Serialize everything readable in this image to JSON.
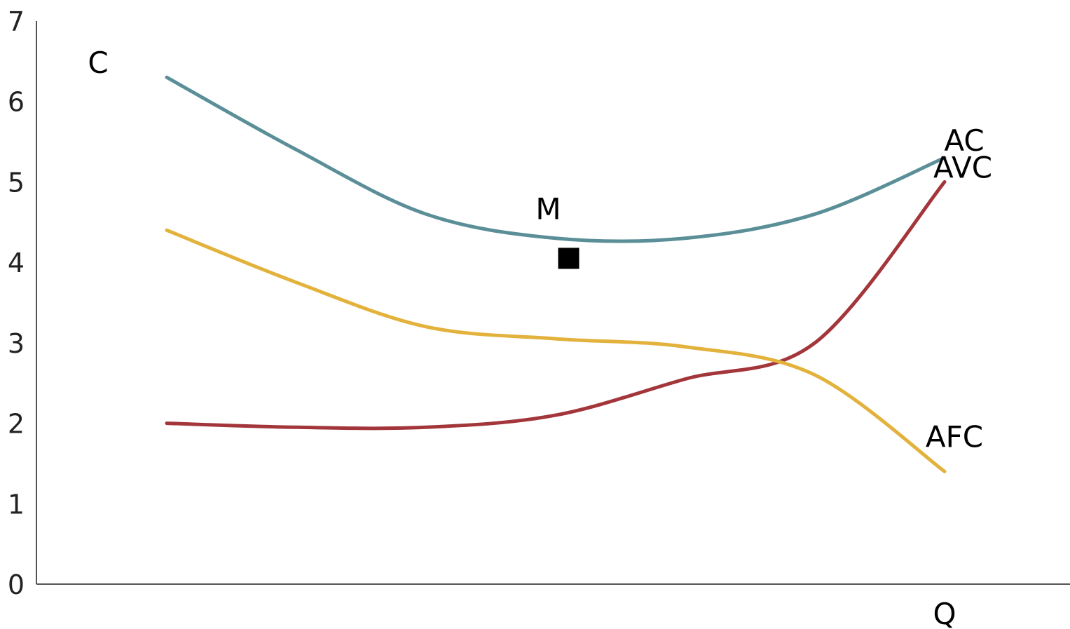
{
  "chart_data": {
    "type": "line",
    "ylabel": "C",
    "xlabel": "Q",
    "ylim": [
      0,
      7
    ],
    "yticks": [
      "0",
      "1",
      "2",
      "3",
      "4",
      "5",
      "6",
      "7"
    ],
    "grid": false,
    "legend": "none; series labelled at right end of each curve",
    "series": [
      {
        "name": "AC",
        "color": "#5b8f98",
        "x": [
          0,
          1,
          2,
          3,
          4,
          5,
          6
        ],
        "y": [
          6.3,
          5.4,
          4.6,
          4.3,
          4.3,
          4.6,
          5.3
        ]
      },
      {
        "name": "AVC",
        "color": "#a3363b",
        "x": [
          0,
          1,
          2,
          3,
          4,
          5,
          6
        ],
        "y": [
          2.0,
          1.95,
          1.95,
          2.1,
          2.55,
          3.0,
          5.0
        ]
      },
      {
        "name": "AFC",
        "color": "#e3b23c",
        "x": [
          0,
          1,
          2,
          3,
          4,
          5,
          6
        ],
        "y": [
          4.4,
          3.75,
          3.2,
          3.05,
          2.95,
          2.6,
          1.4
        ]
      }
    ],
    "annotations": [
      {
        "label": "M",
        "marker": "square",
        "x": 3.1,
        "y": 4.05
      }
    ]
  }
}
